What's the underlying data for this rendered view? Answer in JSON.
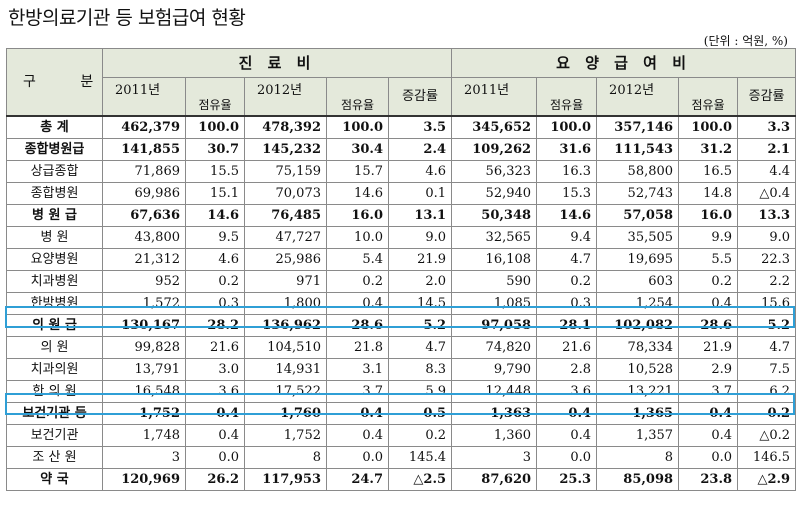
{
  "title": "한방의료기관 등 보험급여 현황",
  "unit": "(단위 : 억원, %)",
  "header": {
    "group_label": "구 분",
    "col_group_1": "진 료 비",
    "col_group_2": "요 양 급 여 비",
    "year_2011": "2011년",
    "year_2012": "2012년",
    "share": "점유율",
    "change": "증감률"
  },
  "rows": [
    {
      "label": "총 계",
      "v": [
        "462,379",
        "100.0",
        "478,392",
        "100.0",
        "3.5",
        "345,652",
        "100.0",
        "357,146",
        "100.0",
        "3.3"
      ]
    },
    {
      "label": "종합병원급",
      "v": [
        "141,855",
        "30.7",
        "145,232",
        "30.4",
        "2.4",
        "109,262",
        "31.6",
        "111,543",
        "31.2",
        "2.1"
      ]
    },
    {
      "label": "상급종합",
      "v": [
        "71,869",
        "15.5",
        "75,159",
        "15.7",
        "4.6",
        "56,323",
        "16.3",
        "58,800",
        "16.5",
        "4.4"
      ]
    },
    {
      "label": "종합병원",
      "v": [
        "69,986",
        "15.1",
        "70,073",
        "14.6",
        "0.1",
        "52,940",
        "15.3",
        "52,743",
        "14.8",
        "△0.4"
      ]
    },
    {
      "label": "병 원 급",
      "v": [
        "67,636",
        "14.6",
        "76,485",
        "16.0",
        "13.1",
        "50,348",
        "14.6",
        "57,058",
        "16.0",
        "13.3"
      ]
    },
    {
      "label": "병 원",
      "v": [
        "43,800",
        "9.5",
        "47,727",
        "10.0",
        "9.0",
        "32,565",
        "9.4",
        "35,505",
        "9.9",
        "9.0"
      ]
    },
    {
      "label": "요양병원",
      "v": [
        "21,312",
        "4.6",
        "25,986",
        "5.4",
        "21.9",
        "16,108",
        "4.7",
        "19,695",
        "5.5",
        "22.3"
      ]
    },
    {
      "label": "치과병원",
      "v": [
        "952",
        "0.2",
        "971",
        "0.2",
        "2.0",
        "590",
        "0.2",
        "603",
        "0.2",
        "2.2"
      ]
    },
    {
      "label": "한방병원",
      "v": [
        "1,572",
        "0.3",
        "1,800",
        "0.4",
        "14.5",
        "1,085",
        "0.3",
        "1,254",
        "0.4",
        "15.6"
      ]
    },
    {
      "label": "의 원 급",
      "v": [
        "130,167",
        "28.2",
        "136,962",
        "28.6",
        "5.2",
        "97,058",
        "28.1",
        "102,082",
        "28.6",
        "5.2"
      ]
    },
    {
      "label": "의 원",
      "v": [
        "99,828",
        "21.6",
        "104,510",
        "21.8",
        "4.7",
        "74,820",
        "21.6",
        "78,334",
        "21.9",
        "4.7"
      ]
    },
    {
      "label": "치과의원",
      "v": [
        "13,791",
        "3.0",
        "14,931",
        "3.1",
        "8.3",
        "9,790",
        "2.8",
        "10,528",
        "2.9",
        "7.5"
      ]
    },
    {
      "label": "한 의 원",
      "v": [
        "16,548",
        "3.6",
        "17,522",
        "3.7",
        "5.9",
        "12,448",
        "3.6",
        "13,221",
        "3.7",
        "6.2"
      ]
    },
    {
      "label": "보건기관 등",
      "v": [
        "1,752",
        "0.4",
        "1,760",
        "0.4",
        "0.5",
        "1,363",
        "0.4",
        "1,365",
        "0.4",
        "0.2"
      ]
    },
    {
      "label": "보건기관",
      "v": [
        "1,748",
        "0.4",
        "1,752",
        "0.4",
        "0.2",
        "1,360",
        "0.4",
        "1,357",
        "0.4",
        "△0.2"
      ]
    },
    {
      "label": "조 산 원",
      "v": [
        "3",
        "0.0",
        "8",
        "0.0",
        "145.4",
        "3",
        "0.0",
        "8",
        "0.0",
        "146.5"
      ]
    },
    {
      "label": "약 국",
      "v": [
        "120,969",
        "26.2",
        "117,953",
        "24.7",
        "△2.5",
        "87,620",
        "25.3",
        "85,098",
        "23.8",
        "△2.9"
      ]
    }
  ],
  "colors": {
    "header_bg": "#e4e9db",
    "highlight_border": "#2f9fd6"
  }
}
